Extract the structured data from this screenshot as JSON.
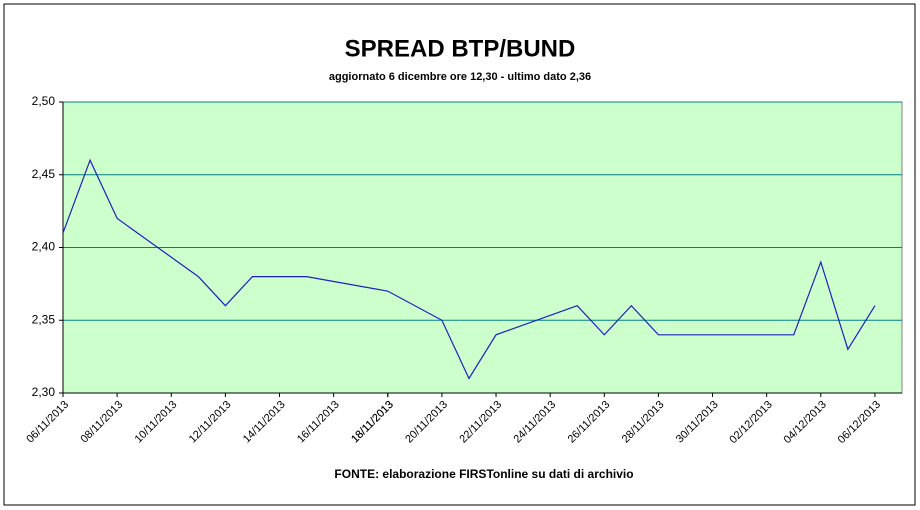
{
  "chart_data": {
    "type": "line",
    "title": "SPREAD BTP/BUND",
    "subtitle": "aggiornato 6 dicembre ore 12,30 - ultimo dato 2,36",
    "source": "FONTE: elaborazione FIRSTonline su dati di archivio",
    "x": [
      "06/11/2013",
      "07/11/2013",
      "08/11/2013",
      "11/11/2013",
      "12/11/2013",
      "13/11/2013",
      "15/11/2013",
      "18/11/2013",
      "20/11/2013",
      "21/11/2013",
      "22/11/2013",
      "25/11/2013",
      "26/11/2013",
      "27/11/2013",
      "28/11/2013",
      "03/12/2013",
      "04/12/2013",
      "05/12/2013",
      "06/12/2013"
    ],
    "series": [
      {
        "name": "spread",
        "color": "#1f1fbf",
        "values": [
          2.41,
          2.46,
          2.42,
          2.38,
          2.36,
          2.38,
          2.38,
          2.37,
          2.35,
          2.31,
          2.34,
          2.36,
          2.34,
          2.36,
          2.34,
          2.34,
          2.39,
          2.33,
          2.36
        ]
      }
    ],
    "xlim": [
      "06/11/2013",
      "07/12/2013"
    ],
    "xticks": [
      "06/11/2013",
      "08/11/2013",
      "10/11/2013",
      "12/11/2013",
      "14/11/2013",
      "16/11/2013",
      "18/11/2013",
      "18/11/2013",
      "20/11/2013",
      "22/11/2013",
      "24/11/2013",
      "26/11/2013",
      "28/11/2013",
      "30/11/2013",
      "02/12/2013",
      "04/12/2013",
      "06/12/2013"
    ],
    "ylim": [
      2.3,
      2.5
    ],
    "yticks": [
      {
        "value": 2.3,
        "label": "2,30"
      },
      {
        "value": 2.35,
        "label": "2,35"
      },
      {
        "value": 2.4,
        "label": "2,40"
      },
      {
        "value": 2.45,
        "label": "2,45"
      },
      {
        "value": 2.5,
        "label": "2,50"
      }
    ],
    "grid": true,
    "grid_color": "#008080",
    "plot_background": "#ccffcc"
  }
}
